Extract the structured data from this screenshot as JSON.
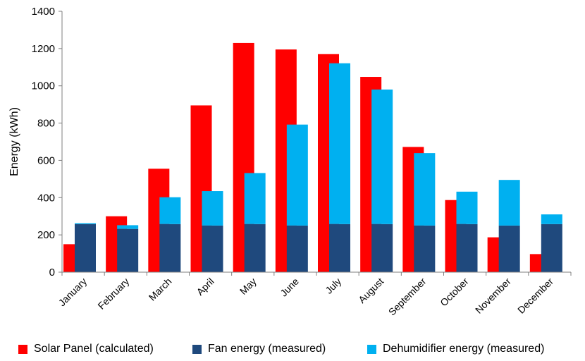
{
  "chart_data": {
    "type": "bar",
    "title": "",
    "ylabel": "Energy (kWh)",
    "xlabel": "",
    "ylim": [
      0,
      1400
    ],
    "yticks": [
      0,
      200,
      400,
      600,
      800,
      1000,
      1200,
      1400
    ],
    "grid": false,
    "legend_position": "bottom",
    "categories": [
      "January",
      "February",
      "March",
      "April",
      "May",
      "June",
      "July",
      "August",
      "September",
      "October",
      "November",
      "December"
    ],
    "series": [
      {
        "name": "Solar Panel (calculated)",
        "color": "#ff0000",
        "values": [
          150,
          300,
          555,
          895,
          1230,
          1195,
          1170,
          1048,
          672,
          387,
          187,
          97
        ]
      },
      {
        "name": "Fan energy (measured)",
        "color": "#1f497d",
        "stacked": true,
        "values": [
          258,
          232,
          258,
          250,
          258,
          250,
          258,
          258,
          250,
          258,
          250,
          258
        ]
      },
      {
        "name": "Dehumidifier energy (measured)",
        "color": "#00b0f0",
        "stacked": true,
        "values": [
          5,
          20,
          144,
          185,
          274,
          542,
          863,
          722,
          389,
          174,
          245,
          52
        ]
      }
    ]
  }
}
